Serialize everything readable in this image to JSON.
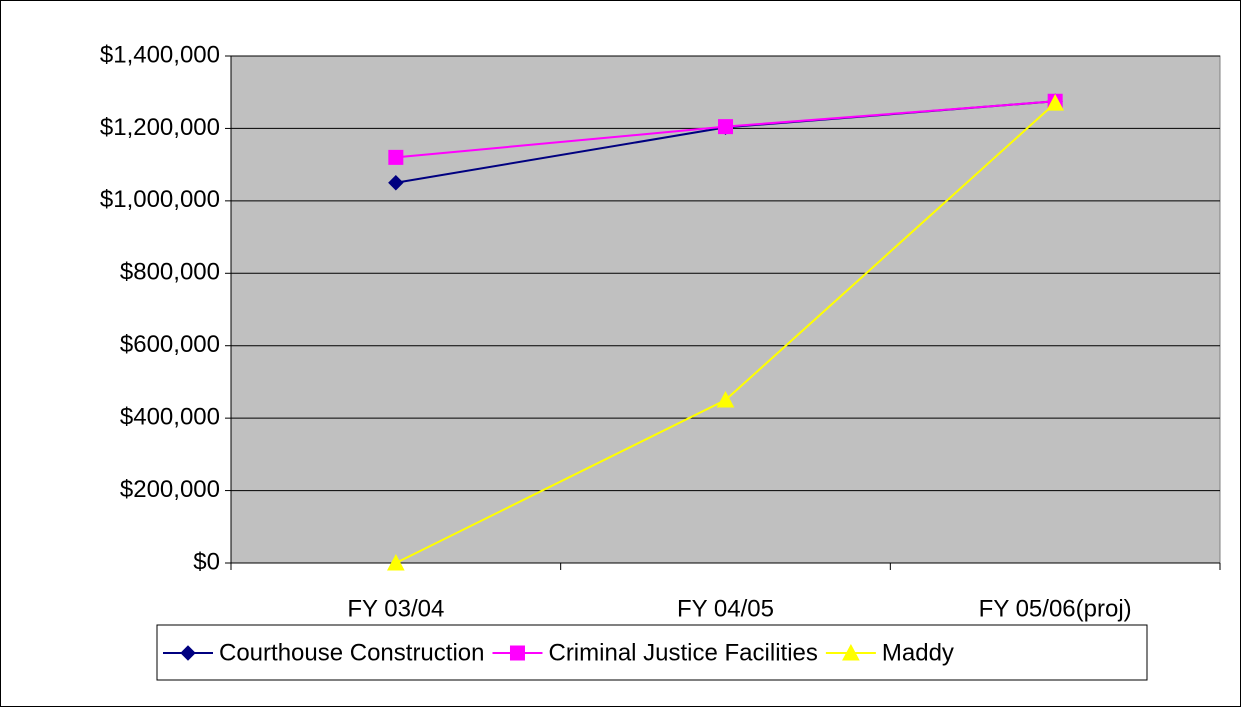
{
  "chart_data": {
    "type": "line",
    "categories": [
      "FY 03/04",
      "FY 04/05",
      "FY 05/06(proj)"
    ],
    "series": [
      {
        "name": "Courthouse Construction",
        "color": "#000080",
        "marker": "diamond",
        "values": [
          1050000,
          1203000,
          1275000
        ]
      },
      {
        "name": "Criminal Justice Facilities",
        "color": "#ff00ff",
        "marker": "square",
        "values": [
          1120000,
          1205000,
          1275000
        ]
      },
      {
        "name": "Maddy",
        "color": "#ffff00",
        "marker": "triangle",
        "values": [
          0,
          450000,
          1270000
        ]
      }
    ],
    "ylim": [
      0,
      1400000
    ],
    "yticks": [
      {
        "value": 0,
        "label": "$0"
      },
      {
        "value": 200000,
        "label": "$200,000"
      },
      {
        "value": 400000,
        "label": "$400,000"
      },
      {
        "value": 600000,
        "label": "$600,000"
      },
      {
        "value": 800000,
        "label": "$800,000"
      },
      {
        "value": 1000000,
        "label": "$1,000,000"
      },
      {
        "value": 1200000,
        "label": "$1,200,000"
      },
      {
        "value": 1400000,
        "label": "$1,400,000"
      }
    ],
    "grid": true,
    "legend": "bottom",
    "plot_background": "#c0c0c0"
  }
}
